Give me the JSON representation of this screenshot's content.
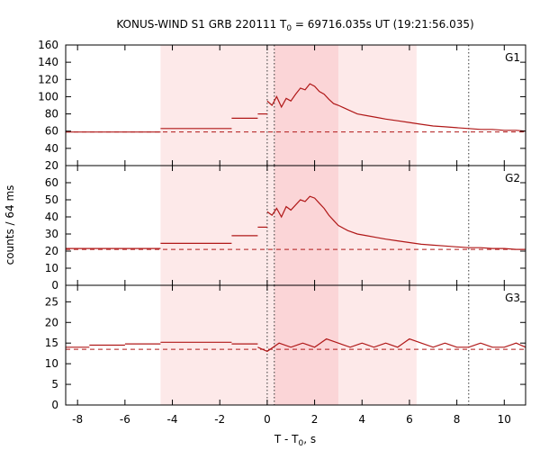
{
  "chart_data": {
    "type": "line",
    "title": "KONUS-WIND S1 GRB 220111 T",
    "title_sub": "0",
    "title_tail": " = 69716.035s UT (19:21:56.035)",
    "xlabel": "T - T",
    "xlabel_sub": "0",
    "xlabel_tail": ", s",
    "ylabel": "counts / 64 ms",
    "xlim": [
      -8.5,
      10.9
    ],
    "x_ticks": [
      -8,
      -6,
      -4,
      -2,
      0,
      2,
      4,
      6,
      8,
      10
    ],
    "grid": false,
    "shaded_intervals": [
      {
        "from": -4.5,
        "to": 6.3,
        "color": "#fde9e9"
      },
      {
        "from": 0.3,
        "to": 3.0,
        "color": "#fbd5d7"
      }
    ],
    "vertical_markers": [
      0.0,
      0.3,
      8.5
    ],
    "line_color": "#b01818",
    "panels": [
      {
        "name": "G1",
        "ylim": [
          20,
          160
        ],
        "y_ticks": [
          20,
          40,
          60,
          80,
          100,
          120,
          140,
          160
        ],
        "background_level": 59,
        "series": [
          {
            "x": [
              -8.5,
              -4.5
            ],
            "y": [
              59,
              59
            ]
          },
          {
            "x": [
              -4.5,
              -1.5
            ],
            "y": [
              63,
              63
            ]
          },
          {
            "x": [
              -1.5,
              -0.4
            ],
            "y": [
              75,
              75
            ]
          },
          {
            "x": [
              -0.4,
              0.0
            ],
            "y": [
              80,
              80
            ]
          },
          {
            "x": [
              0.0,
              0.2,
              0.4,
              0.6,
              0.8,
              1.0,
              1.2,
              1.4,
              1.6,
              1.8,
              2.0,
              2.2,
              2.4,
              2.6,
              2.8,
              3.0,
              3.4,
              3.8,
              4.2,
              4.6,
              5.0,
              5.5,
              6.0,
              6.5,
              7.0,
              7.5,
              8.0,
              8.5,
              9.0,
              9.5,
              10.0,
              10.5,
              10.9
            ],
            "y": [
              95,
              90,
              100,
              88,
              98,
              95,
              103,
              110,
              108,
              115,
              112,
              106,
              103,
              97,
              92,
              90,
              85,
              80,
              78,
              76,
              74,
              72,
              70,
              68,
              66,
              65,
              64,
              63,
              62,
              62,
              61,
              61,
              60
            ]
          }
        ]
      },
      {
        "name": "G2",
        "ylim": [
          0,
          70
        ],
        "y_ticks": [
          0,
          10,
          20,
          30,
          40,
          50,
          60
        ],
        "background_level": 21,
        "series": [
          {
            "x": [
              -8.5,
              -4.5
            ],
            "y": [
              21.5,
              21.5
            ]
          },
          {
            "x": [
              -4.5,
              -1.5
            ],
            "y": [
              24.5,
              24.5
            ]
          },
          {
            "x": [
              -1.5,
              -0.4
            ],
            "y": [
              29,
              29
            ]
          },
          {
            "x": [
              -0.4,
              0.0
            ],
            "y": [
              34,
              34
            ]
          },
          {
            "x": [
              0.0,
              0.2,
              0.4,
              0.6,
              0.8,
              1.0,
              1.2,
              1.4,
              1.6,
              1.8,
              2.0,
              2.2,
              2.4,
              2.6,
              2.8,
              3.0,
              3.4,
              3.8,
              4.2,
              4.6,
              5.0,
              5.5,
              6.0,
              6.5,
              7.0,
              7.5,
              8.0,
              8.5,
              9.0,
              9.5,
              10.0,
              10.5,
              10.9
            ],
            "y": [
              43,
              41,
              45,
              40,
              46,
              44,
              47,
              50,
              49,
              52,
              51,
              48,
              45,
              41,
              38,
              35,
              32,
              30,
              29,
              28,
              27,
              26,
              25,
              24,
              23.5,
              23,
              22.5,
              22,
              22,
              21.5,
              21.5,
              21,
              21
            ]
          }
        ]
      },
      {
        "name": "G3",
        "ylim": [
          0,
          29
        ],
        "y_ticks": [
          0,
          5,
          10,
          15,
          20,
          25
        ],
        "background_level": 13.5,
        "series": [
          {
            "x": [
              -8.5,
              -7.5
            ],
            "y": [
              14,
              14
            ]
          },
          {
            "x": [
              -7.5,
              -6.0
            ],
            "y": [
              14.5,
              14.5
            ]
          },
          {
            "x": [
              -6.0,
              -4.5
            ],
            "y": [
              14.8,
              14.8
            ]
          },
          {
            "x": [
              -4.5,
              -1.5
            ],
            "y": [
              15.2,
              15.2
            ]
          },
          {
            "x": [
              -1.5,
              -0.4
            ],
            "y": [
              14.8,
              14.8
            ]
          },
          {
            "x": [
              -0.4,
              0.0,
              0.5,
              1.0,
              1.5,
              2.0,
              2.5,
              3.0,
              3.5,
              4.0,
              4.5,
              5.0,
              5.5,
              6.0,
              6.5,
              7.0,
              7.5,
              8.0,
              8.5,
              9.0,
              9.5,
              10.0,
              10.5,
              10.9
            ],
            "y": [
              14,
              13,
              15,
              14,
              15,
              14,
              16,
              15,
              14,
              15,
              14,
              15,
              14,
              16,
              15,
              14,
              15,
              14,
              14,
              15,
              14,
              14,
              15,
              14
            ]
          }
        ]
      }
    ]
  }
}
